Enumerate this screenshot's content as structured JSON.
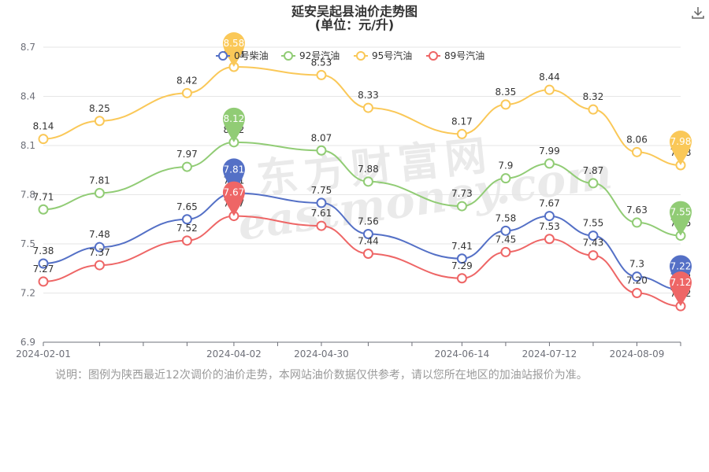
{
  "title": "延安吴起县油价走势图",
  "subtitle": "(单位：元/升)",
  "note": "说明：图例为陕西最近12次调价的油价走势，本网站油价数据仅供参考，请以您所在地区的加油站报价为准。",
  "watermark": {
    "cn": "东方财富网",
    "en": "eastmoney.com"
  },
  "icons": {
    "download": "download-icon"
  },
  "chart_data": {
    "type": "line",
    "x": [
      "2024-02-01",
      "2024-02-19",
      "2024-03-04",
      "2024-03-18",
      "2024-04-02",
      "2024-04-16",
      "2024-04-30",
      "2024-05-15",
      "2024-05-29",
      "2024-06-14",
      "2024-06-28",
      "2024-07-12",
      "2024-07-26",
      "2024-08-09",
      "2024-08-23"
    ],
    "xticks": [
      "2024-02-01",
      "2024-04-02",
      "2024-04-30",
      "2024-06-14",
      "2024-07-12",
      "2024-08-09"
    ],
    "ylim": [
      6.9,
      8.7
    ],
    "yticks": [
      "6.9",
      "7.2",
      "7.5",
      "7.8",
      "8.1",
      "8.4",
      "8.7"
    ],
    "grid": true,
    "legend_position": "top-center",
    "series": [
      {
        "name": "0号柴油",
        "color": "#5470c6",
        "points": [
          [
            "2024-02-01",
            7.38
          ],
          [
            "2024-02-19",
            7.48
          ],
          [
            "2024-03-18",
            7.65
          ],
          [
            "2024-04-02",
            7.81
          ],
          [
            "2024-04-30",
            7.75
          ],
          [
            "2024-05-15",
            7.56
          ],
          [
            "2024-06-14",
            7.41
          ],
          [
            "2024-06-28",
            7.58
          ],
          [
            "2024-07-12",
            7.67
          ],
          [
            "2024-07-26",
            7.55
          ],
          [
            "2024-08-09",
            7.3
          ],
          [
            "2024-08-23",
            7.22
          ]
        ],
        "labels": [
          "7.38",
          "7.48",
          "7.65",
          "7.81",
          "7.75",
          "7.56",
          "7.41",
          "7.58",
          "7.67",
          "7.55",
          "7.3",
          "7.22"
        ],
        "max_index": 3,
        "min_index": 11
      },
      {
        "name": "92号汽油",
        "color": "#91cc75",
        "points": [
          [
            "2024-02-01",
            7.71
          ],
          [
            "2024-02-19",
            7.81
          ],
          [
            "2024-03-18",
            7.97
          ],
          [
            "2024-04-02",
            8.12
          ],
          [
            "2024-04-30",
            8.07
          ],
          [
            "2024-05-15",
            7.88
          ],
          [
            "2024-06-14",
            7.73
          ],
          [
            "2024-06-28",
            7.9
          ],
          [
            "2024-07-12",
            7.99
          ],
          [
            "2024-07-26",
            7.87
          ],
          [
            "2024-08-09",
            7.63
          ],
          [
            "2024-08-23",
            7.55
          ]
        ],
        "labels": [
          "7.71",
          "7.81",
          "7.97",
          "8.12",
          "8.07",
          "7.88",
          "7.73",
          "7.9",
          "7.99",
          "7.87",
          "7.63",
          "7.55"
        ],
        "max_index": 3,
        "min_index": 11
      },
      {
        "name": "95号汽油",
        "color": "#fac858",
        "points": [
          [
            "2024-02-01",
            8.14
          ],
          [
            "2024-02-19",
            8.25
          ],
          [
            "2024-03-18",
            8.42
          ],
          [
            "2024-04-02",
            8.58
          ],
          [
            "2024-04-30",
            8.53
          ],
          [
            "2024-05-15",
            8.33
          ],
          [
            "2024-06-14",
            8.17
          ],
          [
            "2024-06-28",
            8.35
          ],
          [
            "2024-07-12",
            8.44
          ],
          [
            "2024-07-26",
            8.32
          ],
          [
            "2024-08-09",
            8.06
          ],
          [
            "2024-08-23",
            7.98
          ]
        ],
        "labels": [
          "8.14",
          "8.25",
          "8.42",
          "8.58",
          "8.53",
          "8.33",
          "8.17",
          "8.35",
          "8.44",
          "8.32",
          "8.06",
          "7.98"
        ],
        "max_index": 3,
        "min_index": 11
      },
      {
        "name": "89号汽油",
        "color": "#ee6666",
        "points": [
          [
            "2024-02-01",
            7.27
          ],
          [
            "2024-02-19",
            7.37
          ],
          [
            "2024-03-18",
            7.52
          ],
          [
            "2024-04-02",
            7.67
          ],
          [
            "2024-04-30",
            7.61
          ],
          [
            "2024-05-15",
            7.44
          ],
          [
            "2024-06-14",
            7.29
          ],
          [
            "2024-06-28",
            7.45
          ],
          [
            "2024-07-12",
            7.53
          ],
          [
            "2024-07-26",
            7.43
          ],
          [
            "2024-08-09",
            7.2
          ],
          [
            "2024-08-23",
            7.12
          ]
        ],
        "labels": [
          "7.27",
          "7.37",
          "7.52",
          "7.67",
          "7.61",
          "7.44",
          "7.29",
          "7.45",
          "7.53",
          "7.43",
          "7.20",
          "7.12"
        ],
        "max_index": 3,
        "min_index": 11
      }
    ]
  }
}
